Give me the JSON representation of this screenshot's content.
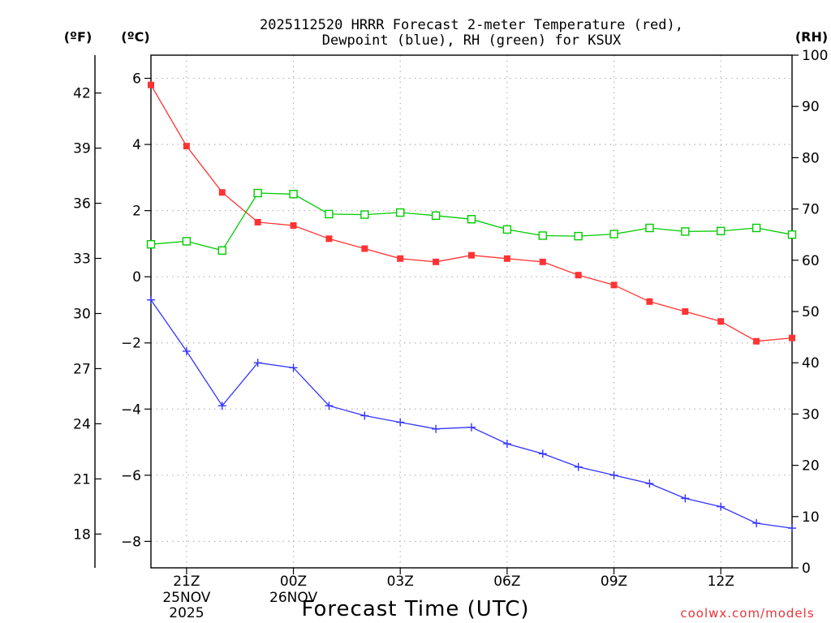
{
  "chart_data": {
    "type": "line",
    "title_line1": "2025112520 HRRR Forecast 2-meter Temperature (red),",
    "title_line2": "Dewpoint (blue), RH (green) for KSUX",
    "left_outer_unit": "(ºF)",
    "left_inner_unit": "(ºC)",
    "right_unit": "(RH)",
    "xlabel": "Forecast Time (UTC)",
    "credit": "coolwx.com/models",
    "x_hours": [
      0,
      1,
      2,
      3,
      4,
      5,
      6,
      7,
      8,
      9,
      10,
      11,
      12,
      13,
      14,
      15,
      16,
      17,
      18
    ],
    "x_range": [
      0,
      18
    ],
    "x_ticks": [
      {
        "hour": 1,
        "label": "21Z",
        "label2": "25NOV",
        "label3": "2025"
      },
      {
        "hour": 4,
        "label": "00Z",
        "label2": "26NOV",
        "label3": ""
      },
      {
        "hour": 7,
        "label": "03Z",
        "label2": "",
        "label3": ""
      },
      {
        "hour": 10,
        "label": "06Z",
        "label2": "",
        "label3": ""
      },
      {
        "hour": 13,
        "label": "09Z",
        "label2": "",
        "label3": ""
      },
      {
        "hour": 16,
        "label": "12Z",
        "label2": "",
        "label3": ""
      }
    ],
    "celsius_axis": {
      "range": [
        -8.8,
        6.7
      ],
      "ticks": [
        "6",
        "4",
        "2",
        "0",
        "−2",
        "−4",
        "−6",
        "−8"
      ],
      "tick_values": [
        6,
        4,
        2,
        0,
        -2,
        -4,
        -6,
        -8
      ]
    },
    "fahrenheit_axis": {
      "ticks": [
        "42",
        "39",
        "36",
        "33",
        "30",
        "27",
        "24",
        "21",
        "18"
      ],
      "tick_values": [
        42,
        39,
        36,
        33,
        30,
        27,
        24,
        21,
        18
      ]
    },
    "rh_axis": {
      "range": [
        0,
        100
      ],
      "ticks": [
        "100",
        "90",
        "80",
        "70",
        "60",
        "50",
        "40",
        "30",
        "20",
        "10",
        "0"
      ],
      "tick_values": [
        100,
        90,
        80,
        70,
        60,
        50,
        40,
        30,
        20,
        10,
        0
      ]
    },
    "series": [
      {
        "name": "2-meter Temperature",
        "unit": "C",
        "color": "#ff3333",
        "marker": "filled-square",
        "values": [
          5.8,
          3.95,
          2.55,
          1.65,
          1.55,
          1.15,
          0.85,
          0.55,
          0.45,
          0.65,
          0.55,
          0.45,
          0.05,
          -0.25,
          -0.75,
          -1.05,
          -1.35,
          -1.95,
          -1.85
        ]
      },
      {
        "name": "Dewpoint",
        "unit": "C",
        "color": "#3333ff",
        "marker": "plus",
        "values": [
          -0.7,
          -2.25,
          -3.9,
          -2.6,
          -2.75,
          -3.9,
          -4.2,
          -4.4,
          -4.6,
          -4.55,
          -5.05,
          -5.35,
          -5.75,
          -6.0,
          -6.25,
          -6.7,
          -6.95,
          -7.45,
          -7.6
        ]
      },
      {
        "name": "RH",
        "unit": "%",
        "color": "#00cc00",
        "marker": "open-square",
        "values": [
          63.1,
          63.7,
          61.9,
          73.1,
          72.9,
          69.0,
          68.9,
          69.3,
          68.7,
          68.0,
          66.0,
          64.8,
          64.7,
          65.1,
          66.3,
          65.6,
          65.7,
          66.3,
          65.0
        ]
      }
    ]
  }
}
